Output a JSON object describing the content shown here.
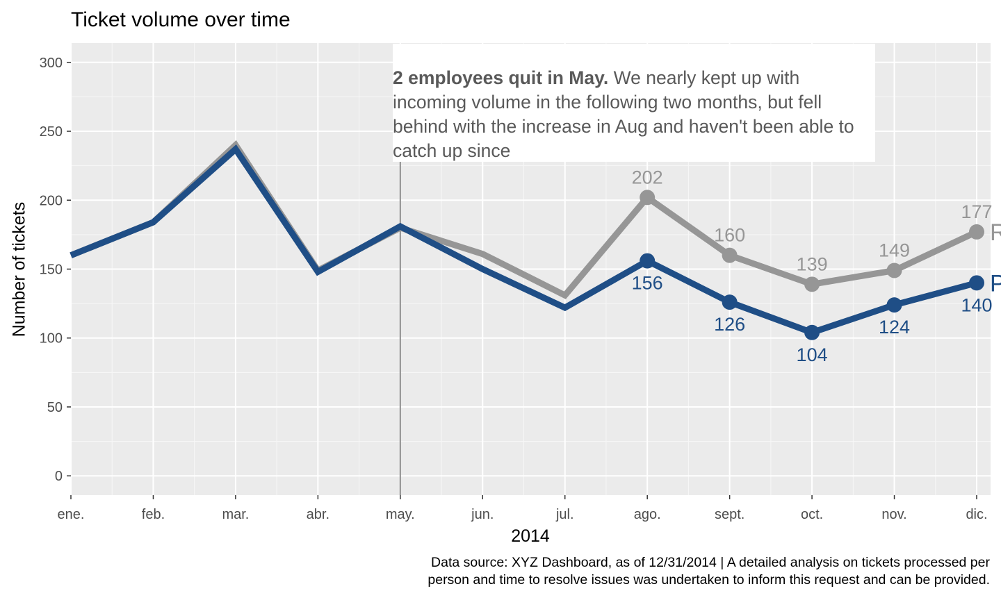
{
  "chart_data": {
    "type": "line",
    "title": "Ticket volume over time",
    "xlabel": "2014",
    "ylabel": "Number of tickets",
    "ylim": [
      -14,
      314
    ],
    "yticks": [
      0,
      50,
      100,
      150,
      200,
      250,
      300
    ],
    "categories": [
      "ene.",
      "feb.",
      "mar.",
      "abr.",
      "may.",
      "jun.",
      "jul.",
      "ago.",
      "sept.",
      "oct.",
      "nov.",
      "dic."
    ],
    "grid": true,
    "series": [
      {
        "name": "Received",
        "end_label": "R",
        "color": "#969696",
        "values": [
          160,
          184,
          240,
          149,
          180,
          161,
          131,
          202,
          160,
          139,
          149,
          177
        ],
        "labeled_from_index": 7
      },
      {
        "name": "Processed",
        "end_label": "P",
        "color": "#1f4e86",
        "values": [
          160,
          184,
          237,
          148,
          181,
          150,
          122,
          156,
          126,
          104,
          124,
          140
        ],
        "labeled_from_index": 7
      }
    ],
    "vline_category": "may.",
    "annotation": {
      "bold": "2 employees quit in May.",
      "text": " We nearly kept up with incoming volume in the following two months, but fell behind with the increase in Aug and haven't been able to catch up since"
    },
    "caption_line1": "Data source: XYZ Dashboard, as of 12/31/2014 | A detailed analysis on tickets processed per",
    "caption_line2": "person and time to resolve issues was undertaken to inform this request and can be provided."
  }
}
